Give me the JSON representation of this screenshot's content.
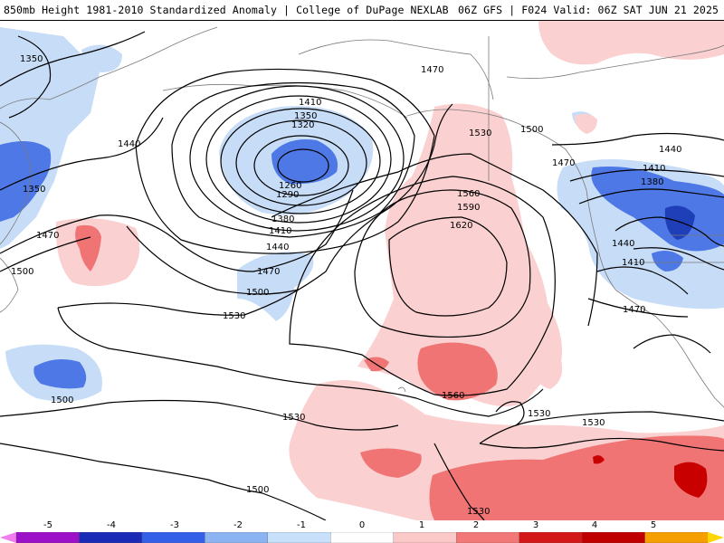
{
  "header": {
    "title_left": "850mb Height 1981-2010 Standardized Anomaly | College of DuPage NEXLAB",
    "title_right": "06Z GFS | F024 Valid: 06Z SAT JUN 21 2025"
  },
  "contour_labels": [
    {
      "text": "1350"
    },
    {
      "text": "1470"
    },
    {
      "text": "1410"
    },
    {
      "text": "1350"
    },
    {
      "text": "1320"
    },
    {
      "text": "1440"
    },
    {
      "text": "1260"
    },
    {
      "text": "1290"
    },
    {
      "text": "1350"
    },
    {
      "text": "1380"
    },
    {
      "text": "1410"
    },
    {
      "text": "1440"
    },
    {
      "text": "1470"
    },
    {
      "text": "1500"
    },
    {
      "text": "1470"
    },
    {
      "text": "1500"
    },
    {
      "text": "1530"
    },
    {
      "text": "1530"
    },
    {
      "text": "1560"
    },
    {
      "text": "1590"
    },
    {
      "text": "1620"
    },
    {
      "text": "1500"
    },
    {
      "text": "1470"
    },
    {
      "text": "1440"
    },
    {
      "text": "1410"
    },
    {
      "text": "1380"
    },
    {
      "text": "1440"
    },
    {
      "text": "1410"
    },
    {
      "text": "1470"
    },
    {
      "text": "1500"
    },
    {
      "text": "1560"
    },
    {
      "text": "1530"
    },
    {
      "text": "1530"
    },
    {
      "text": "1530"
    },
    {
      "text": "1500"
    },
    {
      "text": "1530"
    }
  ],
  "colorbar": {
    "ticks": [
      "-5",
      "-4",
      "-3",
      "-2",
      "-1",
      "0",
      "1",
      "2",
      "3",
      "4",
      "5"
    ],
    "colors": [
      "#f07df0",
      "#9c10c8",
      "#1c2bb5",
      "#3360e6",
      "#8cb4f2",
      "#c8e0fa",
      "#ffffff",
      "#fbc8c8",
      "#f27878",
      "#d21818",
      "#c00000",
      "#f5a000",
      "#ffd700"
    ]
  },
  "map_style": {
    "negative_1": "#c6dcf7",
    "negative_2": "#4d78e6",
    "positive_1": "#fad0d0",
    "positive_2": "#f07474",
    "positive_3": "#c80000",
    "contour": "#000000",
    "coast": "#666666"
  }
}
